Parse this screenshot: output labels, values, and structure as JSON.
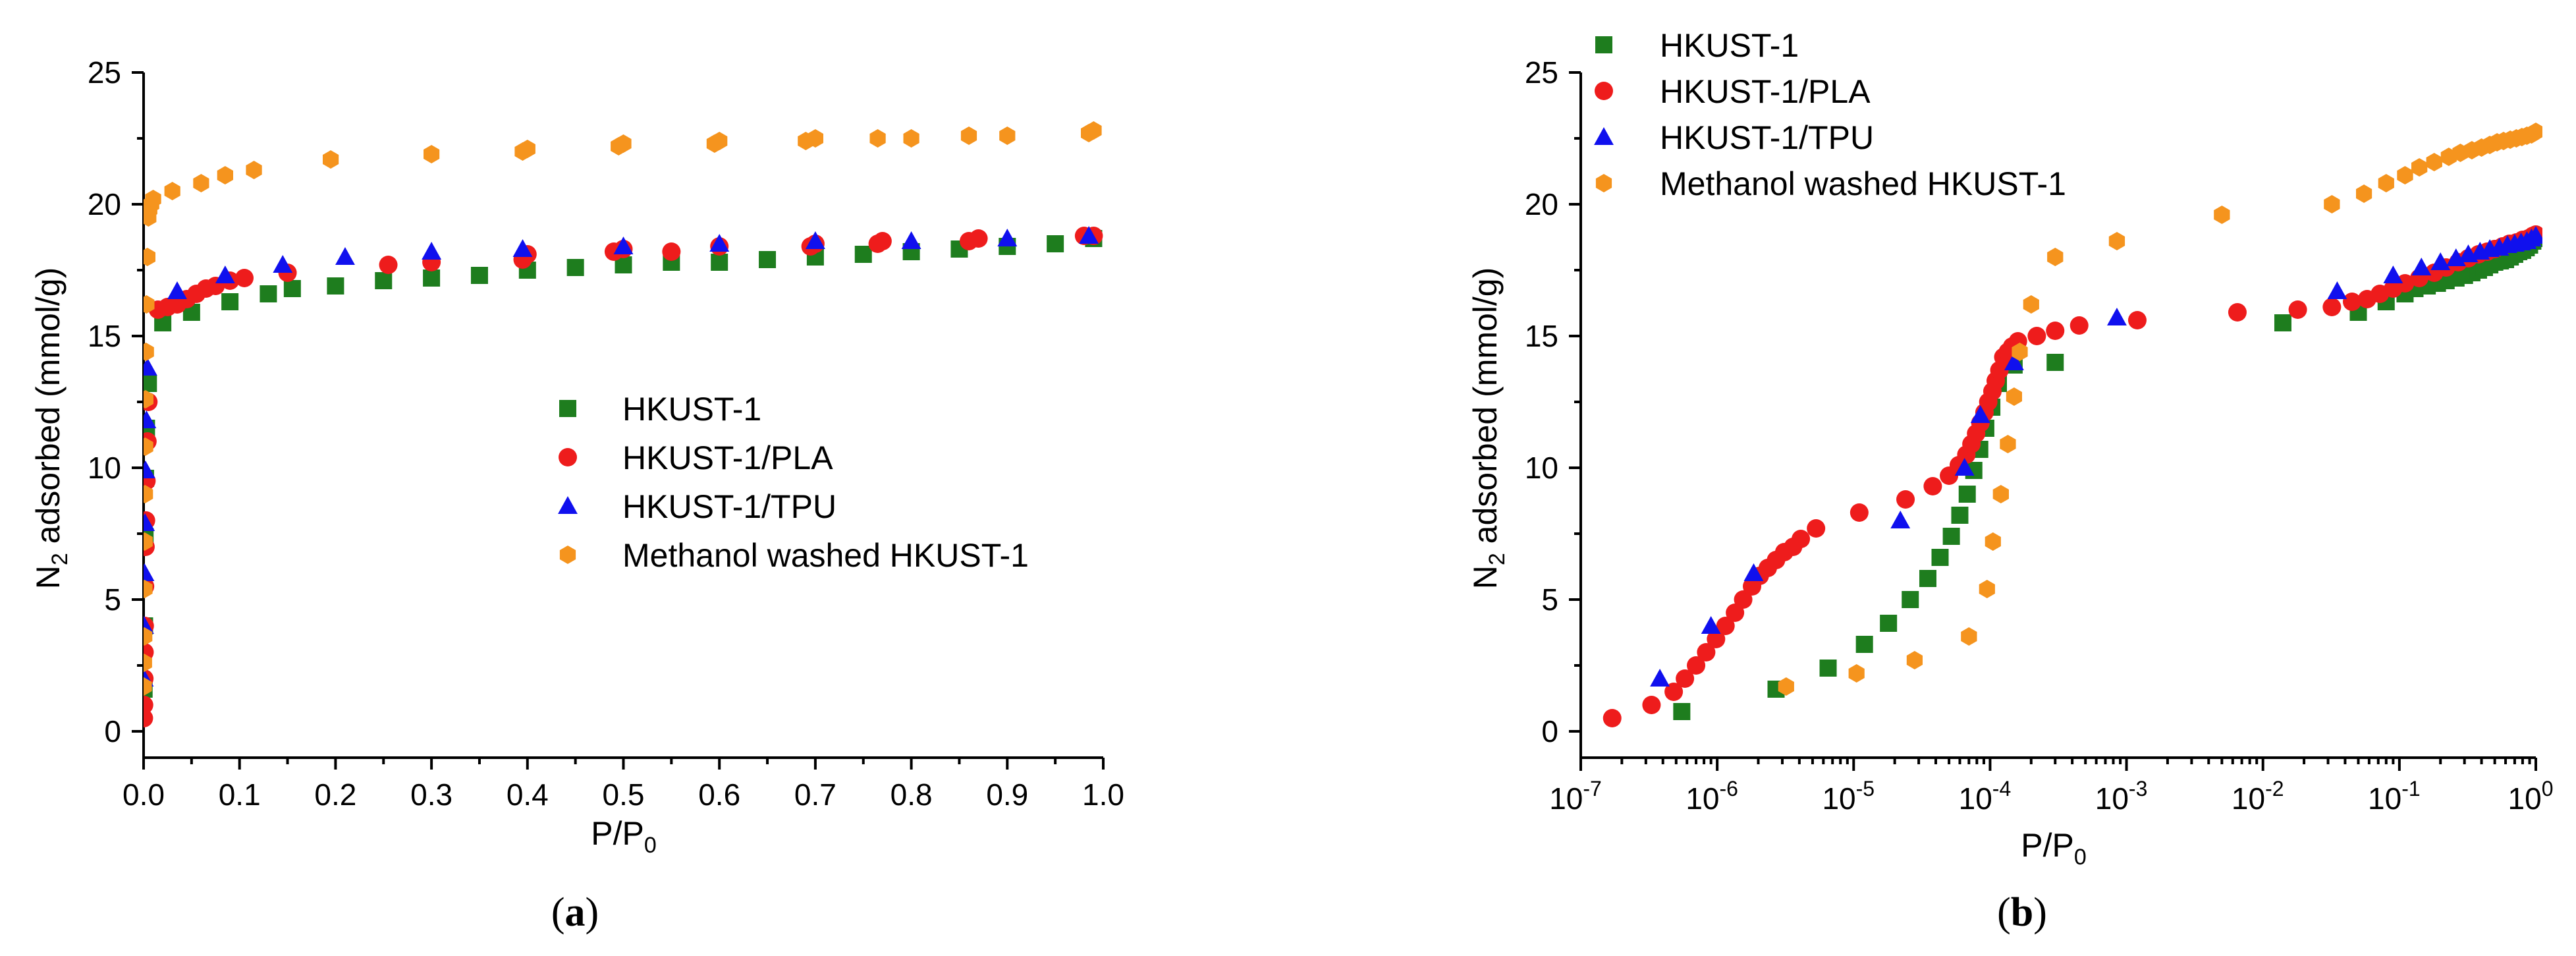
{
  "colors": {
    "HKUST-1": "#1e7d1e",
    "HKUST-1/PLA": "#ee1c1c",
    "HKUST-1/TPU": "#1010ee",
    "Methanol washed HKUST-1": "#f5941e"
  },
  "markers": {
    "HKUST-1": "square",
    "HKUST-1/PLA": "circle",
    "HKUST-1/TPU": "triangle",
    "Methanol washed HKUST-1": "hexagon"
  },
  "chart_data": [
    {
      "type": "scatter",
      "panel_label": {
        "open": "(",
        "letter": "a",
        "close": ")"
      },
      "xlabel": {
        "main": "P/P",
        "sub": "0"
      },
      "ylabel": {
        "main": "N",
        "sub": "2",
        "rest": " adsorbed (mmol/g)"
      },
      "xscale": "linear",
      "xlim": [
        0,
        1.0
      ],
      "ylim": [
        -1,
        25
      ],
      "xticks": [
        0,
        0.1,
        0.2,
        0.3,
        0.4,
        0.5,
        0.6,
        0.7,
        0.8,
        0.9,
        1.0
      ],
      "xtick_labels": [
        "0.0",
        "0.1",
        "0.2",
        "0.3",
        "0.4",
        "0.5",
        "0.6",
        "0.7",
        "0.8",
        "0.9",
        "1.0"
      ],
      "yticks": [
        0,
        5,
        10,
        15,
        20,
        25
      ],
      "ytick_labels": [
        "0",
        "5",
        "10",
        "15",
        "20",
        "25"
      ],
      "legend": {
        "placement": "center-right",
        "entries": [
          "HKUST-1",
          "HKUST-1/PLA",
          "HKUST-1/TPU",
          "Methanol washed HKUST-1"
        ]
      },
      "series": [
        {
          "name": "HKUST-1",
          "x": [
            0.0005,
            0.001,
            0.0015,
            0.002,
            0.003,
            0.005,
            0.02,
            0.05,
            0.09,
            0.13,
            0.155,
            0.2,
            0.25,
            0.3,
            0.35,
            0.4,
            0.45,
            0.5,
            0.55,
            0.6,
            0.65,
            0.7,
            0.75,
            0.8,
            0.85,
            0.9,
            0.95,
            0.99
          ],
          "y": [
            1.6,
            4.0,
            7.4,
            9.6,
            11.5,
            13.2,
            15.5,
            15.9,
            16.3,
            16.6,
            16.8,
            16.9,
            17.1,
            17.2,
            17.3,
            17.5,
            17.6,
            17.7,
            17.8,
            17.8,
            17.9,
            18.0,
            18.1,
            18.2,
            18.3,
            18.4,
            18.5,
            18.7
          ]
        },
        {
          "name": "HKUST-1/PLA",
          "x": [
            0.0003,
            0.0005,
            0.0008,
            0.001,
            0.0012,
            0.0015,
            0.002,
            0.0025,
            0.003,
            0.004,
            0.005,
            0.015,
            0.025,
            0.035,
            0.045,
            0.055,
            0.065,
            0.075,
            0.09,
            0.105,
            0.15,
            0.255,
            0.3,
            0.395,
            0.4,
            0.49,
            0.5,
            0.55,
            0.6,
            0.695,
            0.7,
            0.765,
            0.77,
            0.86,
            0.87,
            0.98,
            0.99
          ],
          "y": [
            0.5,
            1.0,
            2.0,
            3.0,
            4.0,
            5.5,
            7.0,
            8.0,
            9.5,
            11.0,
            12.5,
            16.0,
            16.1,
            16.2,
            16.4,
            16.6,
            16.8,
            16.9,
            17.1,
            17.2,
            17.4,
            17.7,
            17.8,
            17.9,
            18.1,
            18.2,
            18.3,
            18.2,
            18.4,
            18.4,
            18.5,
            18.5,
            18.6,
            18.6,
            18.7,
            18.8,
            18.8
          ]
        },
        {
          "name": "HKUST-1/TPU",
          "x": [
            0.0003,
            0.0006,
            0.001,
            0.0015,
            0.002,
            0.003,
            0.004,
            0.035,
            0.085,
            0.145,
            0.21,
            0.3,
            0.395,
            0.5,
            0.6,
            0.7,
            0.8,
            0.9,
            0.985
          ],
          "y": [
            2.0,
            4.0,
            6.0,
            7.9,
            9.9,
            11.8,
            13.8,
            16.7,
            17.3,
            17.7,
            18.0,
            18.2,
            18.3,
            18.4,
            18.5,
            18.6,
            18.6,
            18.7,
            18.8
          ]
        },
        {
          "name": "Methanol washed HKUST-1",
          "x": [
            0.0003,
            0.0005,
            0.0008,
            0.001,
            0.0012,
            0.0015,
            0.0018,
            0.002,
            0.0025,
            0.003,
            0.004,
            0.005,
            0.006,
            0.008,
            0.01,
            0.03,
            0.06,
            0.085,
            0.115,
            0.195,
            0.3,
            0.395,
            0.4,
            0.495,
            0.5,
            0.595,
            0.6,
            0.69,
            0.7,
            0.765,
            0.8,
            0.86,
            0.9,
            0.985,
            0.99
          ],
          "y": [
            1.7,
            2.6,
            3.6,
            5.4,
            7.2,
            9.0,
            10.8,
            12.6,
            14.4,
            16.2,
            18.0,
            19.5,
            19.8,
            20.0,
            20.2,
            20.5,
            20.8,
            21.1,
            21.3,
            21.7,
            21.9,
            22.0,
            22.1,
            22.2,
            22.3,
            22.3,
            22.4,
            22.4,
            22.5,
            22.5,
            22.5,
            22.6,
            22.6,
            22.7,
            22.8
          ]
        }
      ]
    },
    {
      "type": "scatter",
      "panel_label": {
        "open": "(",
        "letter": "b",
        "close": ")"
      },
      "xlabel": {
        "main": "P/P",
        "sub": "0"
      },
      "ylabel": {
        "main": "N",
        "sub": "2",
        "rest": " adsorbed (mmol/g)"
      },
      "xscale": "log",
      "xlim": [
        1e-07,
        1
      ],
      "ylim": [
        -1,
        25
      ],
      "xtick_exponents": [
        -7,
        -6,
        -5,
        -4,
        -3,
        -2,
        -1,
        0
      ],
      "xtick_labels": [
        {
          "base": "10",
          "exp": "-7"
        },
        {
          "base": "10",
          "exp": "-6"
        },
        {
          "base": "10",
          "exp": "-5"
        },
        {
          "base": "10",
          "exp": "-4"
        },
        {
          "base": "10",
          "exp": "-3"
        },
        {
          "base": "10",
          "exp": "-2"
        },
        {
          "base": "10",
          "exp": "-1"
        },
        {
          "base": "10",
          "exp": "0"
        }
      ],
      "yticks": [
        0,
        5,
        10,
        15,
        20,
        25
      ],
      "ytick_labels": [
        "0",
        "5",
        "10",
        "15",
        "20",
        "25"
      ],
      "legend": {
        "placement": "top-left",
        "entries": [
          "HKUST-1",
          "HKUST-1/PLA",
          "HKUST-1/TPU",
          "Methanol washed HKUST-1"
        ]
      },
      "series": [
        {
          "name": "HKUST-1",
          "x": [
            5.5e-07,
            2.7e-06,
            6.5e-06,
            1.2e-05,
            1.8e-05,
            2.6e-05,
            3.5e-05,
            4.3e-05,
            5.2e-05,
            6e-05,
            6.8e-05,
            7.6e-05,
            8.4e-05,
            9.3e-05,
            0.000103,
            0.000115,
            0.00013,
            0.00015,
            0.0003,
            0.014,
            0.05,
            0.08,
            0.11,
            0.13,
            0.16,
            0.19,
            0.22,
            0.26,
            0.3,
            0.34,
            0.38,
            0.42,
            0.46,
            0.5,
            0.55,
            0.6,
            0.65,
            0.7,
            0.75,
            0.8,
            0.85,
            0.9,
            0.95,
            1.0
          ],
          "y": [
            0.75,
            1.6,
            2.4,
            3.3,
            4.1,
            5.0,
            5.8,
            6.6,
            7.4,
            8.2,
            9.0,
            9.9,
            10.7,
            11.5,
            12.3,
            13.2,
            14.0,
            13.9,
            14.0,
            15.5,
            15.9,
            16.3,
            16.6,
            16.8,
            16.9,
            17.0,
            17.1,
            17.2,
            17.3,
            17.4,
            17.5,
            17.6,
            17.7,
            17.8,
            17.85,
            17.9,
            18.0,
            18.1,
            18.2,
            18.25,
            18.35,
            18.45,
            18.6,
            18.7
          ]
        },
        {
          "name": "HKUST-1/PLA",
          "x": [
            1.7e-07,
            3.3e-07,
            4.8e-07,
            5.8e-07,
            7e-07,
            8.3e-07,
            9.8e-07,
            1.15e-06,
            1.35e-06,
            1.55e-06,
            1.8e-06,
            2.05e-06,
            2.35e-06,
            2.7e-06,
            3.1e-06,
            3.6e-06,
            4.1e-06,
            5.3e-06,
            1.1e-05,
            2.4e-05,
            3.8e-05,
            5e-05,
            5.9e-05,
            6.7e-05,
            7.3e-05,
            7.9e-05,
            8.5e-05,
            9.1e-05,
            9.7e-05,
            0.000104,
            0.00011,
            0.000117,
            0.000125,
            0.000135,
            0.000145,
            0.00016,
            0.00022,
            0.0003,
            0.00045,
            0.0012,
            0.0065,
            0.018,
            0.032,
            0.045,
            0.058,
            0.072,
            0.09,
            0.11,
            0.14,
            0.18,
            0.22,
            0.27,
            0.32,
            0.38,
            0.44,
            0.5,
            0.57,
            0.64,
            0.72,
            0.8,
            0.88,
            0.95,
            1.0
          ],
          "y": [
            0.5,
            1.0,
            1.5,
            2.0,
            2.5,
            3.0,
            3.5,
            4.0,
            4.5,
            5.0,
            5.5,
            5.9,
            6.2,
            6.5,
            6.8,
            7.0,
            7.3,
            7.7,
            8.3,
            8.8,
            9.3,
            9.7,
            10.1,
            10.5,
            10.9,
            11.3,
            11.7,
            12.1,
            12.5,
            12.9,
            13.3,
            13.7,
            14.2,
            14.4,
            14.6,
            14.8,
            15.0,
            15.2,
            15.4,
            15.6,
            15.9,
            16.0,
            16.1,
            16.3,
            16.4,
            16.6,
            16.8,
            17.0,
            17.2,
            17.4,
            17.6,
            17.8,
            17.95,
            18.1,
            18.2,
            18.3,
            18.4,
            18.5,
            18.55,
            18.65,
            18.7,
            18.8,
            18.85
          ]
        },
        {
          "name": "HKUST-1/TPU",
          "x": [
            3.8e-07,
            9e-07,
            1.85e-06,
            2.2e-05,
            6.5e-05,
            8.5e-05,
            0.00015,
            0.00085,
            0.035,
            0.09,
            0.145,
            0.2,
            0.26,
            0.32,
            0.39,
            0.46,
            0.54,
            0.62,
            0.7,
            0.78,
            0.86,
            0.93,
            1.0
          ],
          "y": [
            2.0,
            4.0,
            6.0,
            8.0,
            10.0,
            12.0,
            14.0,
            15.7,
            16.7,
            17.3,
            17.6,
            17.8,
            17.95,
            18.1,
            18.2,
            18.3,
            18.35,
            18.45,
            18.5,
            18.55,
            18.6,
            18.7,
            18.8
          ]
        },
        {
          "name": "Methanol washed HKUST-1",
          "x": [
            3.2e-06,
            1.05e-05,
            2.8e-05,
            7e-05,
            9.5e-05,
            0.000105,
            0.00012,
            0.000135,
            0.00015,
            0.000165,
            0.0002,
            0.0003,
            0.00085,
            0.005,
            0.032,
            0.055,
            0.08,
            0.11,
            0.14,
            0.18,
            0.23,
            0.28,
            0.34,
            0.4,
            0.46,
            0.52,
            0.58,
            0.65,
            0.72,
            0.79,
            0.86,
            0.93,
            1.0
          ],
          "y": [
            1.7,
            2.2,
            2.7,
            3.6,
            5.4,
            7.2,
            9.0,
            10.9,
            12.7,
            14.4,
            16.2,
            18.0,
            18.6,
            19.6,
            20.0,
            20.4,
            20.8,
            21.1,
            21.4,
            21.6,
            21.8,
            21.95,
            22.05,
            22.15,
            22.25,
            22.35,
            22.4,
            22.45,
            22.5,
            22.55,
            22.6,
            22.65,
            22.75
          ]
        }
      ]
    }
  ]
}
